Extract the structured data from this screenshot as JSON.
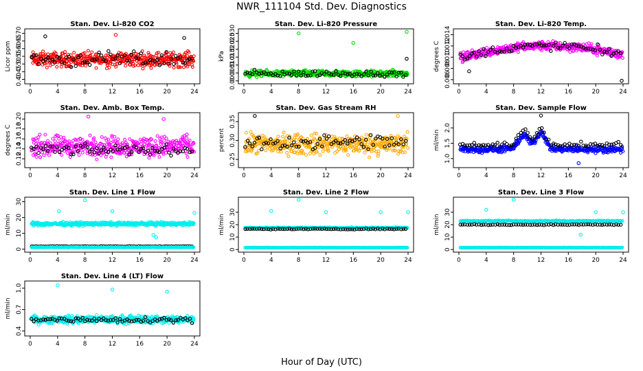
{
  "figure": {
    "title": "NWR_111104  Std. Dev. Diagnostics",
    "xlabel": "Hour of Day (UTC)"
  },
  "colors": {
    "red": "#ff0000",
    "green": "#00dd00",
    "magenta": "#ff00ff",
    "orange": "#ffaa00",
    "blue": "#0000ff",
    "cyan": "#00eeee",
    "black": "#000000"
  },
  "chart_data": [
    {
      "type": "scatter",
      "title": "Stan. Dev. Li-820 CO2",
      "ylabel": "Licor ppm",
      "xlim": [
        0,
        24
      ],
      "ylim": [
        0.38,
        0.72
      ],
      "xticks": [
        "0",
        "4",
        "8",
        "12",
        "16",
        "20",
        "24"
      ],
      "yticks": [
        "0.40",
        "0.45",
        "0.50",
        "0.55",
        "0.60",
        "0.65",
        "0.70"
      ],
      "series": [
        {
          "color": "red",
          "pattern": "band",
          "center": 0.53,
          "spread": 0.07
        },
        {
          "color": "black",
          "pattern": "band",
          "center": 0.53,
          "spread": 0.07
        }
      ],
      "outliers": [
        {
          "x": 2.2,
          "y": 0.68,
          "color": "black"
        },
        {
          "x": 12.5,
          "y": 0.69,
          "color": "red"
        },
        {
          "x": 22.5,
          "y": 0.67,
          "color": "black"
        }
      ]
    },
    {
      "type": "scatter",
      "title": "Stan. Dev. Li-820 Pressure",
      "ylabel": "kPa",
      "xlim": [
        0,
        24
      ],
      "ylim": [
        -0.001,
        0.032
      ],
      "xticks": [
        "0",
        "4",
        "8",
        "12",
        "16",
        "20",
        "24"
      ],
      "yticks": [
        "0.000",
        "0.005",
        "0.010",
        "0.015",
        "0.020",
        "0.025",
        "0.030"
      ],
      "series": [
        {
          "color": "green",
          "pattern": "band",
          "center": 0.0045,
          "spread": 0.003
        },
        {
          "color": "black",
          "pattern": "band",
          "center": 0.0045,
          "spread": 0.003
        }
      ],
      "outliers": [
        {
          "x": 8,
          "y": 0.03,
          "color": "green"
        },
        {
          "x": 16,
          "y": 0.024,
          "color": "green"
        },
        {
          "x": 23.8,
          "y": 0.031,
          "color": "green"
        },
        {
          "x": 23.8,
          "y": 0.014,
          "color": "black"
        }
      ]
    },
    {
      "type": "scatter",
      "title": "Stan. Dev. Li-820 Temp.",
      "ylabel": "degrees C",
      "xlim": [
        0,
        24
      ],
      "ylim": [
        0.0055,
        0.0148
      ],
      "xticks": [
        "0",
        "4",
        "8",
        "12",
        "16",
        "20",
        "24"
      ],
      "yticks": [
        "0.006",
        "0.008",
        "0.010",
        "0.012",
        "0.014"
      ],
      "series": [
        {
          "color": "magenta",
          "pattern": "hump",
          "center": 0.0112,
          "spread": 0.0012
        },
        {
          "color": "black",
          "pattern": "hump",
          "center": 0.0112,
          "spread": 0.0012
        }
      ],
      "outliers": [
        {
          "x": 23.8,
          "y": 0.0058,
          "color": "black"
        },
        {
          "x": 1.5,
          "y": 0.0075,
          "color": "black"
        }
      ]
    },
    {
      "type": "scatter",
      "title": "Stan. Dev. Amb. Box Temp.",
      "ylabel": "degrees C",
      "xlim": [
        0,
        24
      ],
      "ylim": [
        0.105,
        0.21
      ],
      "xticks": [
        "0",
        "4",
        "8",
        "12",
        "16",
        "20",
        "24"
      ],
      "yticks": [
        "0.12",
        "0.14",
        "0.16",
        "0.18",
        "0.20"
      ],
      "series": [
        {
          "color": "magenta",
          "pattern": "band",
          "center": 0.145,
          "spread": 0.03
        },
        {
          "color": "black",
          "pattern": "band",
          "center": 0.138,
          "spread": 0.015
        }
      ],
      "outliers": [
        {
          "x": 8.5,
          "y": 0.205,
          "color": "magenta"
        },
        {
          "x": 19.5,
          "y": 0.2,
          "color": "magenta"
        }
      ]
    },
    {
      "type": "scatter",
      "title": "Stan. Dev. Gas Stream RH",
      "ylabel": "percent",
      "xlim": [
        0,
        24
      ],
      "ylim": [
        0.232,
        0.37
      ],
      "xticks": [
        "0",
        "4",
        "8",
        "12",
        "16",
        "20",
        "24"
      ],
      "yticks": [
        "0.25",
        "0.30",
        "0.35"
      ],
      "series": [
        {
          "color": "orange",
          "pattern": "band",
          "center": 0.29,
          "spread": 0.04
        },
        {
          "color": "black",
          "pattern": "band",
          "center": 0.295,
          "spread": 0.03
        }
      ],
      "outliers": [
        {
          "x": 1.6,
          "y": 0.365,
          "color": "black"
        },
        {
          "x": 22.5,
          "y": 0.365,
          "color": "orange"
        }
      ]
    },
    {
      "type": "scatter",
      "title": "Stan. Dev. Sample Flow",
      "ylabel": "ml/min",
      "xlim": [
        0,
        24
      ],
      "ylim": [
        0.75,
        2.45
      ],
      "xticks": [
        "0",
        "4",
        "8",
        "12",
        "16",
        "20",
        "24"
      ],
      "yticks": [
        "1.0",
        "1.5",
        "2.0"
      ],
      "series": [
        {
          "color": "blue",
          "pattern": "peaks",
          "center": 1.3,
          "spread": 0.15
        },
        {
          "color": "black",
          "pattern": "peaks",
          "center": 1.45,
          "spread": 0.12
        }
      ],
      "outliers": [
        {
          "x": 12,
          "y": 2.4,
          "color": "black"
        },
        {
          "x": 17.5,
          "y": 0.85,
          "color": "blue"
        }
      ]
    },
    {
      "type": "scatter",
      "title": "Stan. Dev. Line 1 Flow",
      "ylabel": "ml/min",
      "xlim": [
        0,
        24
      ],
      "ylim": [
        -1,
        32
      ],
      "xticks": [
        "0",
        "4",
        "8",
        "12",
        "16",
        "20",
        "24"
      ],
      "yticks": [
        "0",
        "10",
        "20",
        "30"
      ],
      "series": [
        {
          "color": "cyan",
          "pattern": "band",
          "center": 16,
          "spread": 1.6
        },
        {
          "color": "black",
          "pattern": "flat",
          "center": 1.8,
          "spread": 0.3
        },
        {
          "color": "cyan",
          "pattern": "flat",
          "center": 1.2,
          "spread": 0.2
        }
      ],
      "outliers": [
        {
          "x": 8,
          "y": 31,
          "color": "cyan"
        },
        {
          "x": 4.2,
          "y": 24,
          "color": "cyan"
        },
        {
          "x": 12,
          "y": 24,
          "color": "cyan"
        },
        {
          "x": 24,
          "y": 23,
          "color": "cyan"
        },
        {
          "x": 18,
          "y": 9,
          "color": "cyan"
        },
        {
          "x": 18.4,
          "y": 7.5,
          "color": "cyan"
        }
      ]
    },
    {
      "type": "scatter",
      "title": "Stan. Dev. Line 2 Flow",
      "ylabel": "ml/min",
      "xlim": [
        0,
        24
      ],
      "ylim": [
        -1,
        41
      ],
      "xticks": [
        "0",
        "4",
        "8",
        "12",
        "16",
        "20",
        "24"
      ],
      "yticks": [
        "0",
        "10",
        "20",
        "30"
      ],
      "series": [
        {
          "color": "cyan",
          "pattern": "flat",
          "center": 17.5,
          "spread": 0.5
        },
        {
          "color": "black",
          "pattern": "flat",
          "center": 16.5,
          "spread": 0.5
        },
        {
          "color": "cyan",
          "pattern": "flat",
          "center": 1.5,
          "spread": 0.2
        }
      ],
      "outliers": [
        {
          "x": 8,
          "y": 40,
          "color": "cyan"
        },
        {
          "x": 4,
          "y": 31,
          "color": "cyan"
        },
        {
          "x": 12,
          "y": 30,
          "color": "cyan"
        },
        {
          "x": 20,
          "y": 30,
          "color": "cyan"
        },
        {
          "x": 24,
          "y": 30,
          "color": "cyan"
        }
      ]
    },
    {
      "type": "scatter",
      "title": "Stan. Dev. Line 3 Flow",
      "ylabel": "ml/min",
      "xlim": [
        0,
        24
      ],
      "ylim": [
        -1,
        41
      ],
      "xticks": [
        "0",
        "4",
        "8",
        "12",
        "16",
        "20",
        "24"
      ],
      "yticks": [
        "0",
        "10",
        "20",
        "30"
      ],
      "series": [
        {
          "color": "cyan",
          "pattern": "flat",
          "center": 23,
          "spread": 0.6
        },
        {
          "color": "black",
          "pattern": "flat",
          "center": 20,
          "spread": 0.5
        },
        {
          "color": "cyan",
          "pattern": "flat",
          "center": 1.5,
          "spread": 0.2
        }
      ],
      "outliers": [
        {
          "x": 8,
          "y": 40,
          "color": "cyan"
        },
        {
          "x": 4,
          "y": 32,
          "color": "cyan"
        },
        {
          "x": 20,
          "y": 30,
          "color": "cyan"
        },
        {
          "x": 24,
          "y": 30,
          "color": "cyan"
        },
        {
          "x": 17.8,
          "y": 12,
          "color": "cyan"
        }
      ]
    },
    {
      "type": "scatter",
      "title": "Stan. Dev. Line 4 (LT) Flow",
      "ylabel": "ml/min",
      "xlim": [
        0,
        24
      ],
      "ylim": [
        0.35,
        1.08
      ],
      "xticks": [
        "0",
        "4",
        "8",
        "12",
        "16",
        "20",
        "24"
      ],
      "yticks": [
        "0.4",
        "0.7",
        "1.0"
      ],
      "series": [
        {
          "color": "cyan",
          "pattern": "band",
          "center": 0.56,
          "spread": 0.08
        },
        {
          "color": "black",
          "pattern": "band",
          "center": 0.56,
          "spread": 0.06
        }
      ],
      "outliers": [
        {
          "x": 4,
          "y": 1.04,
          "color": "cyan"
        },
        {
          "x": 12,
          "y": 0.98,
          "color": "cyan"
        },
        {
          "x": 20,
          "y": 0.95,
          "color": "cyan"
        }
      ]
    }
  ]
}
